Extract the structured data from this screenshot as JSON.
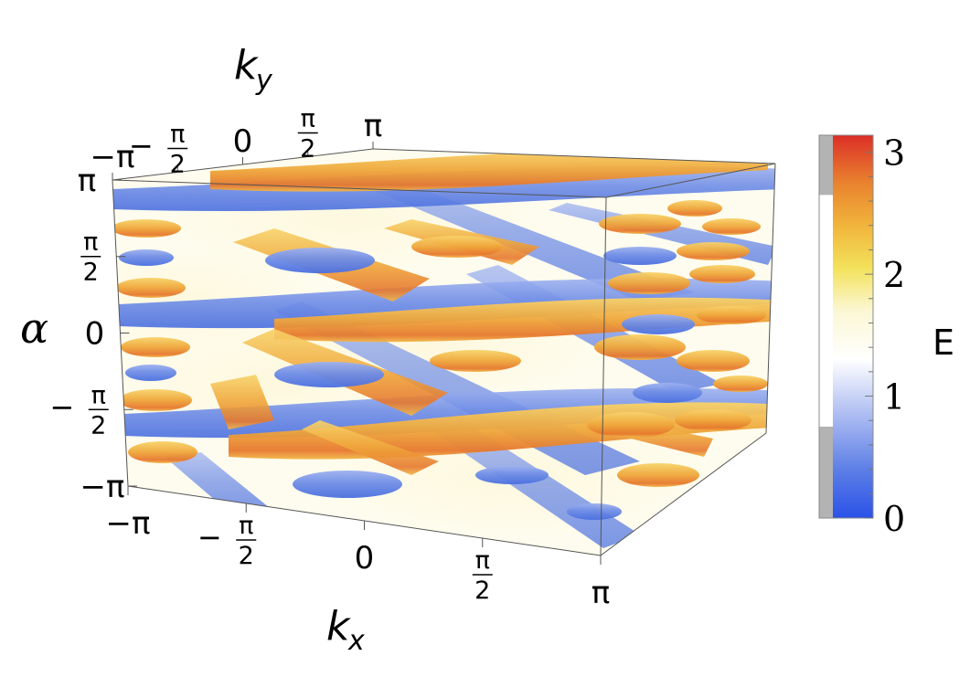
{
  "chart_data": {
    "type": "heatmap",
    "subtype": "3d-volume-isosurface",
    "axes": {
      "x": {
        "symbol": "k",
        "subscript": "x",
        "ticks": [
          {
            "v": -3.14159,
            "sign": "−",
            "num": "π",
            "den": ""
          },
          {
            "v": -1.5708,
            "sign": "−",
            "num": "π",
            "den": "2"
          },
          {
            "v": 0,
            "sign": "",
            "num": "0",
            "den": ""
          },
          {
            "v": 1.5708,
            "sign": "",
            "num": "π",
            "den": "2"
          },
          {
            "v": 3.14159,
            "sign": "",
            "num": "π",
            "den": ""
          }
        ]
      },
      "y": {
        "symbol": "k",
        "subscript": "y",
        "ticks": [
          {
            "v": -3.14159,
            "sign": "−",
            "num": "π",
            "den": ""
          },
          {
            "v": -1.5708,
            "sign": "−",
            "num": "π",
            "den": "2"
          },
          {
            "v": 0,
            "sign": "",
            "num": "0",
            "den": ""
          },
          {
            "v": 1.5708,
            "sign": "",
            "num": "π",
            "den": "2"
          },
          {
            "v": 3.14159,
            "sign": "",
            "num": "π",
            "den": ""
          }
        ]
      },
      "z": {
        "symbol": "α",
        "ticks": [
          {
            "v": -3.14159,
            "sign": "−",
            "num": "π",
            "den": ""
          },
          {
            "v": -1.5708,
            "sign": "−",
            "num": "π",
            "den": "2"
          },
          {
            "v": 0,
            "sign": "",
            "num": "0",
            "den": ""
          },
          {
            "v": 1.5708,
            "sign": "",
            "num": "π",
            "den": "2"
          },
          {
            "v": 3.14159,
            "sign": "",
            "num": "π",
            "den": ""
          }
        ]
      },
      "range": [
        -3.14159,
        3.14159
      ]
    },
    "colorbar": {
      "label": "E",
      "range": [
        0,
        3.14
      ],
      "ticks": [
        "0",
        "1",
        "2",
        "3"
      ],
      "tick_values": [
        0,
        1,
        2,
        3
      ],
      "stops": [
        {
          "v": 0,
          "color": "#2b52e8"
        },
        {
          "v": 0.4,
          "color": "#5d7fe6"
        },
        {
          "v": 0.85,
          "color": "#aebdf2"
        },
        {
          "v": 1.3,
          "color": "#ffffff"
        },
        {
          "v": 1.7,
          "color": "#fbf7d4"
        },
        {
          "v": 2.05,
          "color": "#f3e25c"
        },
        {
          "v": 2.4,
          "color": "#f1b43b"
        },
        {
          "v": 2.75,
          "color": "#e9822f"
        },
        {
          "v": 3.14,
          "color": "#dc2e27"
        }
      ],
      "shaded_ranges": [
        [
          0,
          0.75
        ],
        [
          2.65,
          3.14
        ]
      ],
      "shade_color": "#b3b3b3"
    },
    "isosurfaces": [
      {
        "name": "low",
        "level_range": [
          0,
          0.75
        ],
        "color": "#5a7ee6"
      },
      {
        "name": "high",
        "level_range": [
          2.65,
          3.14
        ],
        "color": "#f0ac3c"
      }
    ]
  }
}
